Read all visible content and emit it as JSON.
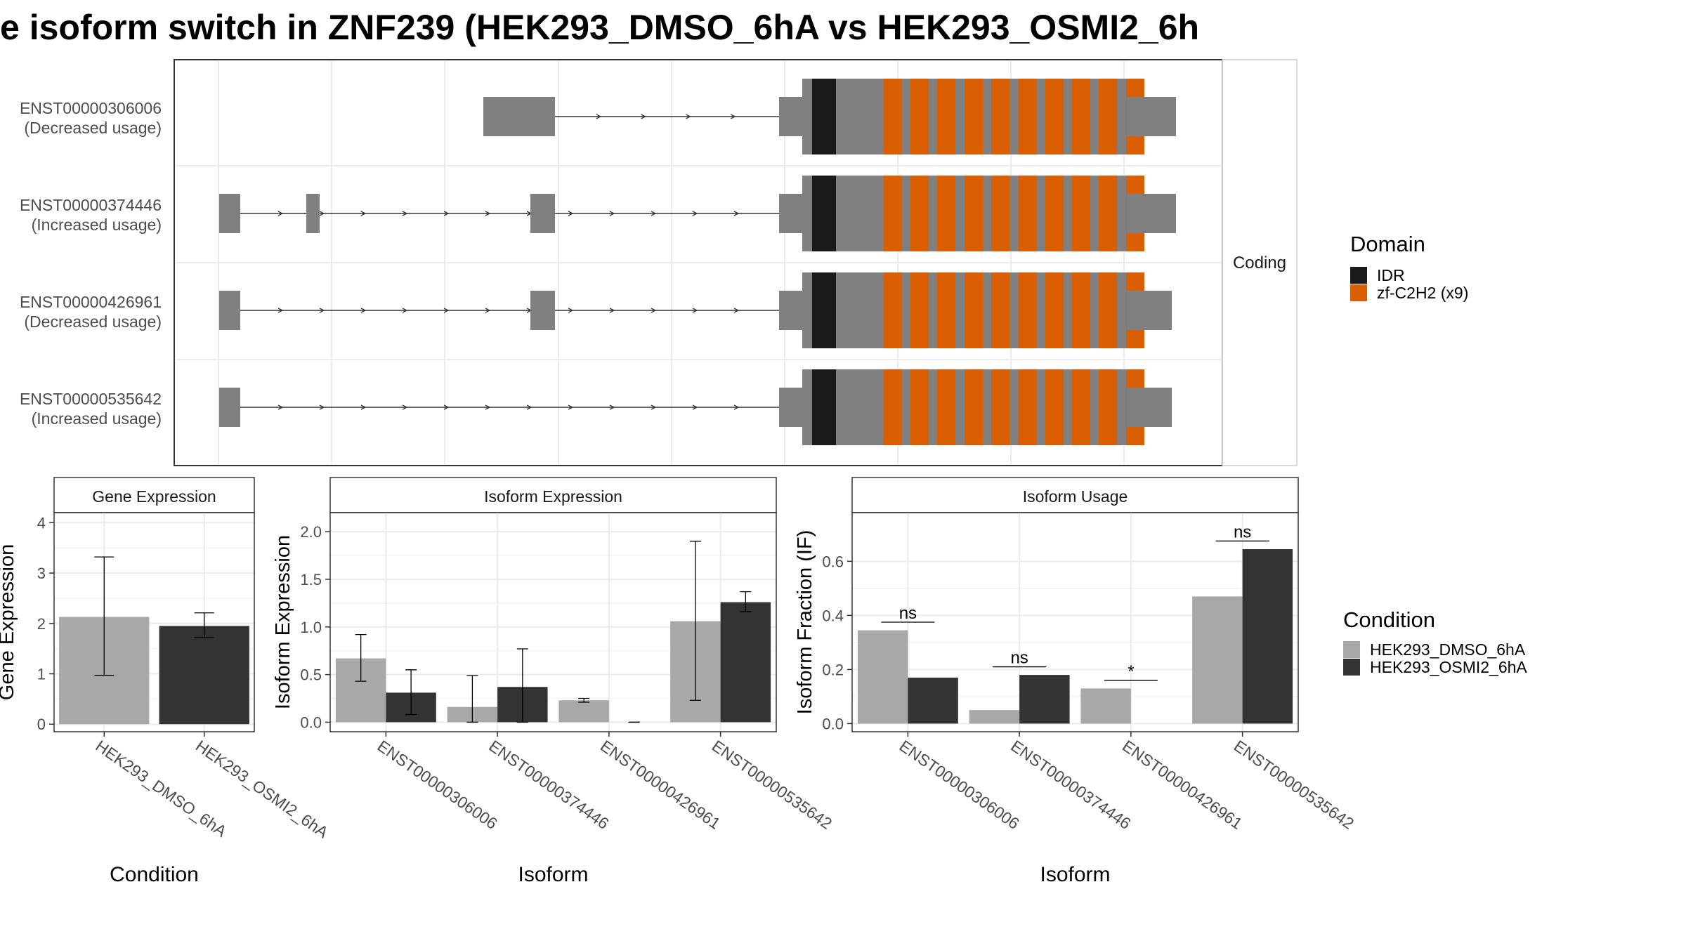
{
  "title": "e isoform switch in ZNF239 (HEK293_DMSO_6hA vs HEK293_OSMI2_6h",
  "colors": {
    "exon": "#808080",
    "idr": "#1a1a1a",
    "zf": "#d95f02",
    "dmso": "#a8a8a8",
    "osmi": "#333333",
    "grid": "#ebebeb",
    "panel_border": "#333333"
  },
  "structure": {
    "facet_label": "Coding",
    "transcripts": [
      {
        "id": "ENST00000306006",
        "note": "(Decreased usage)"
      },
      {
        "id": "ENST00000374446",
        "note": "(Increased usage)"
      },
      {
        "id": "ENST00000426961",
        "note": "(Decreased usage)"
      },
      {
        "id": "ENST00000535642",
        "note": "(Increased usage)"
      }
    ],
    "legend": {
      "title": "Domain",
      "items": [
        {
          "label": "IDR",
          "color": "#1a1a1a"
        },
        {
          "label": "zf-C2H2 (x9)",
          "color": "#d95f02"
        }
      ]
    }
  },
  "condition_legend": {
    "title": "Condition",
    "items": [
      {
        "label": "HEK293_DMSO_6hA",
        "color": "#a8a8a8"
      },
      {
        "label": "HEK293_OSMI2_6hA",
        "color": "#333333"
      }
    ]
  },
  "chart_data": [
    {
      "type": "bar",
      "title": "Gene Expression",
      "xlabel": "Condition",
      "ylabel": "Gene Expression",
      "categories": [
        "HEK293_DMSO_6hA",
        "HEK293_OSMI2_6hA"
      ],
      "values": [
        2.13,
        1.95
      ],
      "error_low": [
        0.97,
        1.72
      ],
      "error_high": [
        3.32,
        2.21
      ],
      "ylim": [
        -0.15,
        4.2
      ],
      "yticks": [
        0,
        1,
        2,
        3,
        4
      ],
      "grid": true
    },
    {
      "type": "bar",
      "title": "Isoform Expression",
      "xlabel": "Isoform",
      "ylabel": "Isoform Expression",
      "categories": [
        "ENST00000306006",
        "ENST00000374446",
        "ENST00000426961",
        "ENST00000535642"
      ],
      "series": [
        {
          "name": "HEK293_DMSO_6hA",
          "values": [
            0.67,
            0.16,
            0.23,
            1.06
          ],
          "error_low": [
            0.43,
            0.0,
            0.21,
            0.23
          ],
          "error_high": [
            0.92,
            0.49,
            0.25,
            1.9
          ]
        },
        {
          "name": "HEK293_OSMI2_6hA",
          "values": [
            0.31,
            0.37,
            0.0,
            1.26
          ],
          "error_low": [
            0.08,
            0.0,
            0.0,
            1.16
          ],
          "error_high": [
            0.55,
            0.77,
            0.0,
            1.37
          ]
        }
      ],
      "ylim": [
        -0.1,
        2.2
      ],
      "yticks": [
        0.0,
        0.5,
        1.0,
        1.5,
        2.0
      ],
      "ytick_labels": [
        "0.0",
        "0.5",
        "1.0",
        "1.5",
        "2.0"
      ],
      "grid": true
    },
    {
      "type": "bar",
      "title": "Isoform Usage",
      "xlabel": "Isoform",
      "ylabel": "Isoform Fraction (IF)",
      "categories": [
        "ENST00000306006",
        "ENST00000374446",
        "ENST00000426961",
        "ENST00000535642"
      ],
      "series": [
        {
          "name": "HEK293_DMSO_6hA",
          "values": [
            0.345,
            0.05,
            0.13,
            0.47
          ]
        },
        {
          "name": "HEK293_OSMI2_6hA",
          "values": [
            0.17,
            0.18,
            0.0,
            0.645
          ]
        }
      ],
      "significance": [
        "ns",
        "ns",
        "*",
        "ns"
      ],
      "ylim": [
        -0.03,
        0.78
      ],
      "yticks": [
        0.0,
        0.2,
        0.4,
        0.6
      ],
      "ytick_labels": [
        "0.0",
        "0.2",
        "0.4",
        "0.6"
      ],
      "grid": true
    }
  ]
}
